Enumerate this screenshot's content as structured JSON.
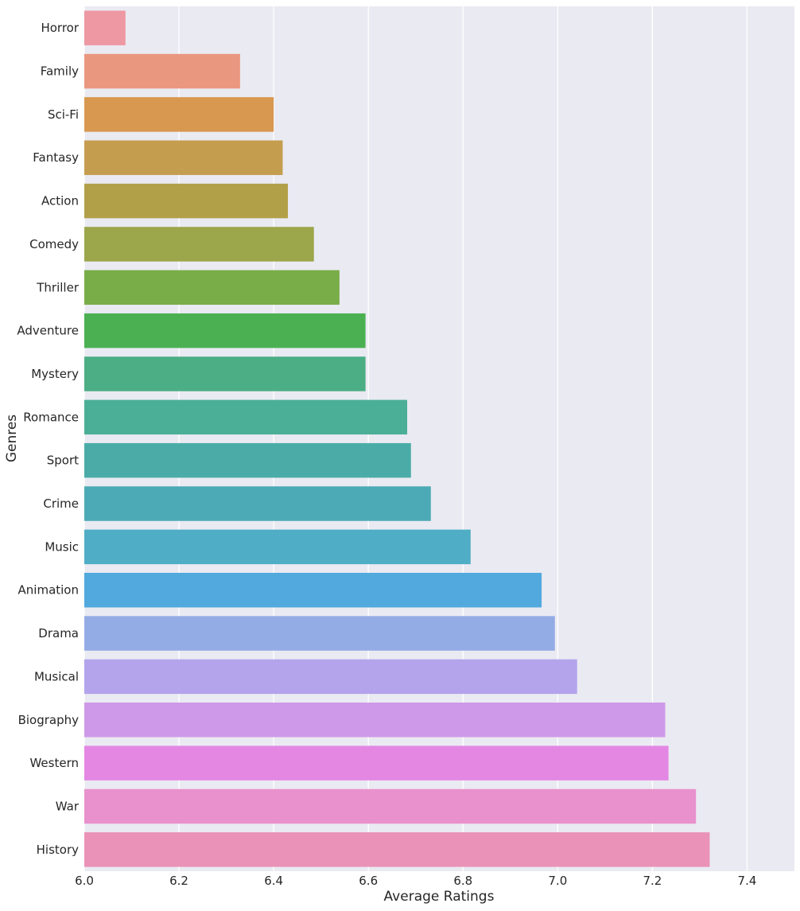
{
  "chart_data": {
    "type": "bar",
    "orientation": "horizontal",
    "xlabel": "Average Ratings",
    "ylabel": "Genres",
    "xlim": [
      6.0,
      7.5
    ],
    "xticks": [
      "6.0",
      "6.2",
      "6.4",
      "6.6",
      "6.8",
      "7.0",
      "7.2",
      "7.4"
    ],
    "grid": true,
    "categories": [
      "Horror",
      "Family",
      "Sci-Fi",
      "Fantasy",
      "Action",
      "Comedy",
      "Thriller",
      "Adventure",
      "Mystery",
      "Romance",
      "Sport",
      "Crime",
      "Music",
      "Animation",
      "Drama",
      "Musical",
      "Biography",
      "Western",
      "War",
      "History"
    ],
    "values": [
      6.087,
      6.329,
      6.4,
      6.419,
      6.43,
      6.485,
      6.539,
      6.594,
      6.594,
      6.682,
      6.69,
      6.732,
      6.816,
      6.966,
      6.994,
      7.041,
      7.227,
      7.234,
      7.292,
      7.321
    ],
    "colors": [
      "#EE98A4",
      "#EA977F",
      "#D8984F",
      "#C59D4E",
      "#B2A049",
      "#9CA64A",
      "#79AD48",
      "#4BB052",
      "#4CAE84",
      "#4AAF96",
      "#4BACA7",
      "#4BAAB5",
      "#4FAEC5",
      "#52A9DD",
      "#94ACE6",
      "#B3A4EC",
      "#CE99E8",
      "#E487E3",
      "#E891CC",
      "#EA92B7"
    ]
  }
}
